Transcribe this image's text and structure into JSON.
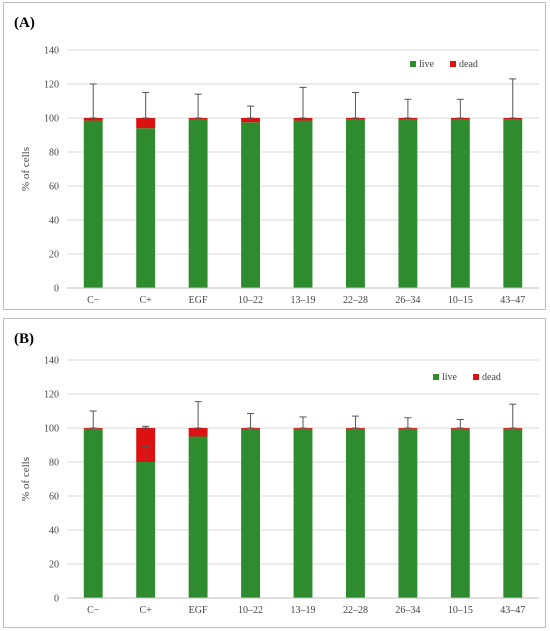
{
  "chart_data": [
    {
      "panel_label": "(A)",
      "type": "bar",
      "stacked": true,
      "categories": [
        "C−",
        "C+",
        "EGF",
        "10–22",
        "13–19",
        "22–28",
        "26–34",
        "10–15",
        "43–47"
      ],
      "series": [
        {
          "name": "live",
          "color": "#2e8b2e",
          "values": [
            98.5,
            94,
            99,
            97.5,
            98.5,
            99,
            99,
            99,
            99
          ]
        },
        {
          "name": "dead",
          "color": "#dd1111",
          "values": [
            1.5,
            6,
            1,
            2.5,
            1.5,
            1,
            1,
            1,
            1
          ]
        }
      ],
      "error_bars": [
        20,
        15,
        14,
        7,
        18,
        15,
        11,
        11,
        23
      ],
      "ylabel": "% of cells",
      "ylim": [
        0,
        140
      ],
      "yticks": [
        0,
        20,
        40,
        60,
        80,
        100,
        120,
        140
      ],
      "grid": true,
      "legend_position": "top-right"
    },
    {
      "panel_label": "(B)",
      "type": "bar",
      "stacked": true,
      "categories": [
        "C−",
        "C+",
        "EGF",
        "10–22",
        "13–19",
        "22–28",
        "26–34",
        "10–15",
        "43–47"
      ],
      "series": [
        {
          "name": "live",
          "color": "#2e8b2e",
          "values": [
            99.5,
            80,
            95,
            99.5,
            99.5,
            99.5,
            99.5,
            99.5,
            99.5
          ]
        },
        {
          "name": "dead",
          "color": "#dd1111",
          "values": [
            0.5,
            20,
            5,
            0.5,
            0.5,
            0.5,
            0.5,
            0.5,
            0.5
          ]
        }
      ],
      "error_bars": [
        10,
        1,
        15.5,
        8.5,
        6.5,
        7,
        6,
        5,
        14
      ],
      "inner_error_bars": [
        null,
        9,
        null,
        null,
        null,
        null,
        null,
        null,
        null
      ],
      "ylabel": "% of cells",
      "ylim": [
        0,
        140
      ],
      "yticks": [
        0,
        20,
        40,
        60,
        80,
        100,
        120,
        140
      ],
      "grid": true,
      "legend_position": "top-right"
    }
  ]
}
